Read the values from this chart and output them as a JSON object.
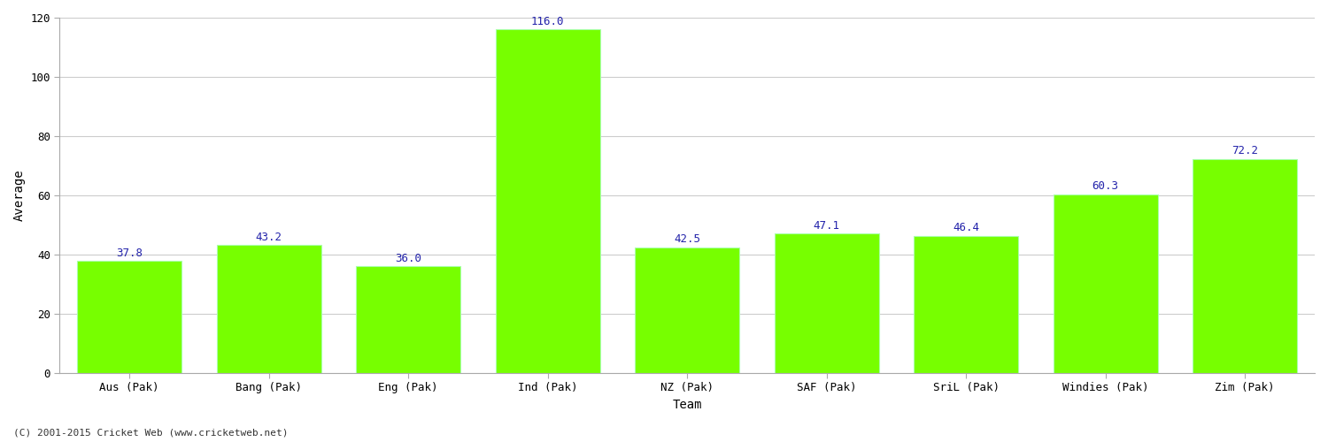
{
  "categories": [
    "Aus (Pak)",
    "Bang (Pak)",
    "Eng (Pak)",
    "Ind (Pak)",
    "NZ (Pak)",
    "SAF (Pak)",
    "SriL (Pak)",
    "Windies (Pak)",
    "Zim (Pak)"
  ],
  "values": [
    37.8,
    43.2,
    36.0,
    116.0,
    42.5,
    47.1,
    46.4,
    60.3,
    72.2
  ],
  "bar_color": "#77ff00",
  "bar_edge_color": "#aaffaa",
  "xlabel": "Team",
  "ylabel": "Average",
  "ylim": [
    0,
    120
  ],
  "yticks": [
    0,
    20,
    40,
    60,
    80,
    100,
    120
  ],
  "value_label_color": "#2222aa",
  "value_label_fontsize": 9,
  "axis_label_fontsize": 10,
  "tick_label_fontsize": 9,
  "grid_color": "#cccccc",
  "background_color": "#ffffff",
  "footer_text": "(C) 2001-2015 Cricket Web (www.cricketweb.net)",
  "footer_fontsize": 8,
  "footer_color": "#333333",
  "bar_width": 0.75,
  "left_spine_color": "#aaaaaa",
  "bottom_spine_color": "#aaaaaa"
}
